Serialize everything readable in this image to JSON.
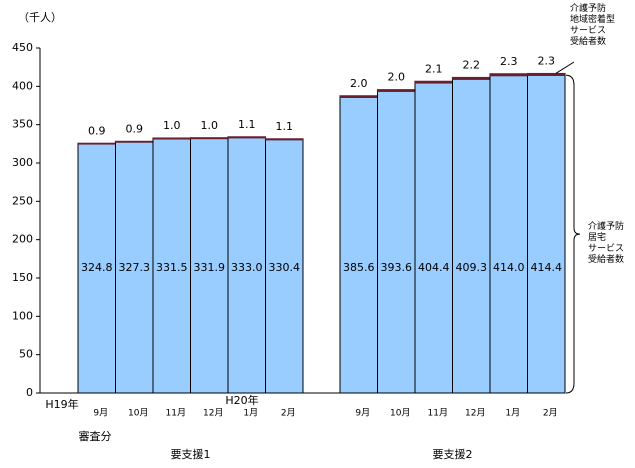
{
  "chart_data": {
    "type": "bar",
    "stacked": true,
    "unit_label": "（千人）",
    "categories": [
      "9月",
      "10月",
      "11月",
      "12月",
      "1月",
      "2月",
      "9月",
      "10月",
      "11月",
      "12月",
      "1月",
      "2月"
    ],
    "groups": [
      "要支援1",
      "要支援2"
    ],
    "year_labels": [
      "H19年",
      "H20年"
    ],
    "note": "審査分",
    "series": [
      {
        "name": "介護予防\n居宅\nサービス\n受給者数",
        "color": "#99ccff",
        "values": [
          324.8,
          327.3,
          331.5,
          331.9,
          333.0,
          330.4,
          385.6,
          393.6,
          404.4,
          409.3,
          414.0,
          414.4
        ],
        "value_labels": [
          "324.8",
          "327.3",
          "331.5",
          "331.9",
          "333.0",
          "330.4",
          "385.6",
          "393.6",
          "404.4",
          "409.3",
          "414.0",
          "414.4"
        ]
      },
      {
        "name": "介護予防\n地域密着型\nサービス\n受給者数",
        "color": "#6b1f2e",
        "values": [
          0.9,
          0.9,
          1.0,
          1.0,
          1.1,
          1.1,
          2.0,
          2.0,
          2.1,
          2.2,
          2.3,
          2.3
        ],
        "value_labels": [
          "0.9",
          "0.9",
          "1.0",
          "1.0",
          "1.1",
          "1.1",
          "2.0",
          "2.0",
          "2.1",
          "2.2",
          "2.3",
          "2.3"
        ]
      }
    ],
    "ylim": [
      0,
      450
    ],
    "yticks": [
      0,
      50,
      100,
      150,
      200,
      250,
      300,
      350,
      400,
      450
    ]
  }
}
